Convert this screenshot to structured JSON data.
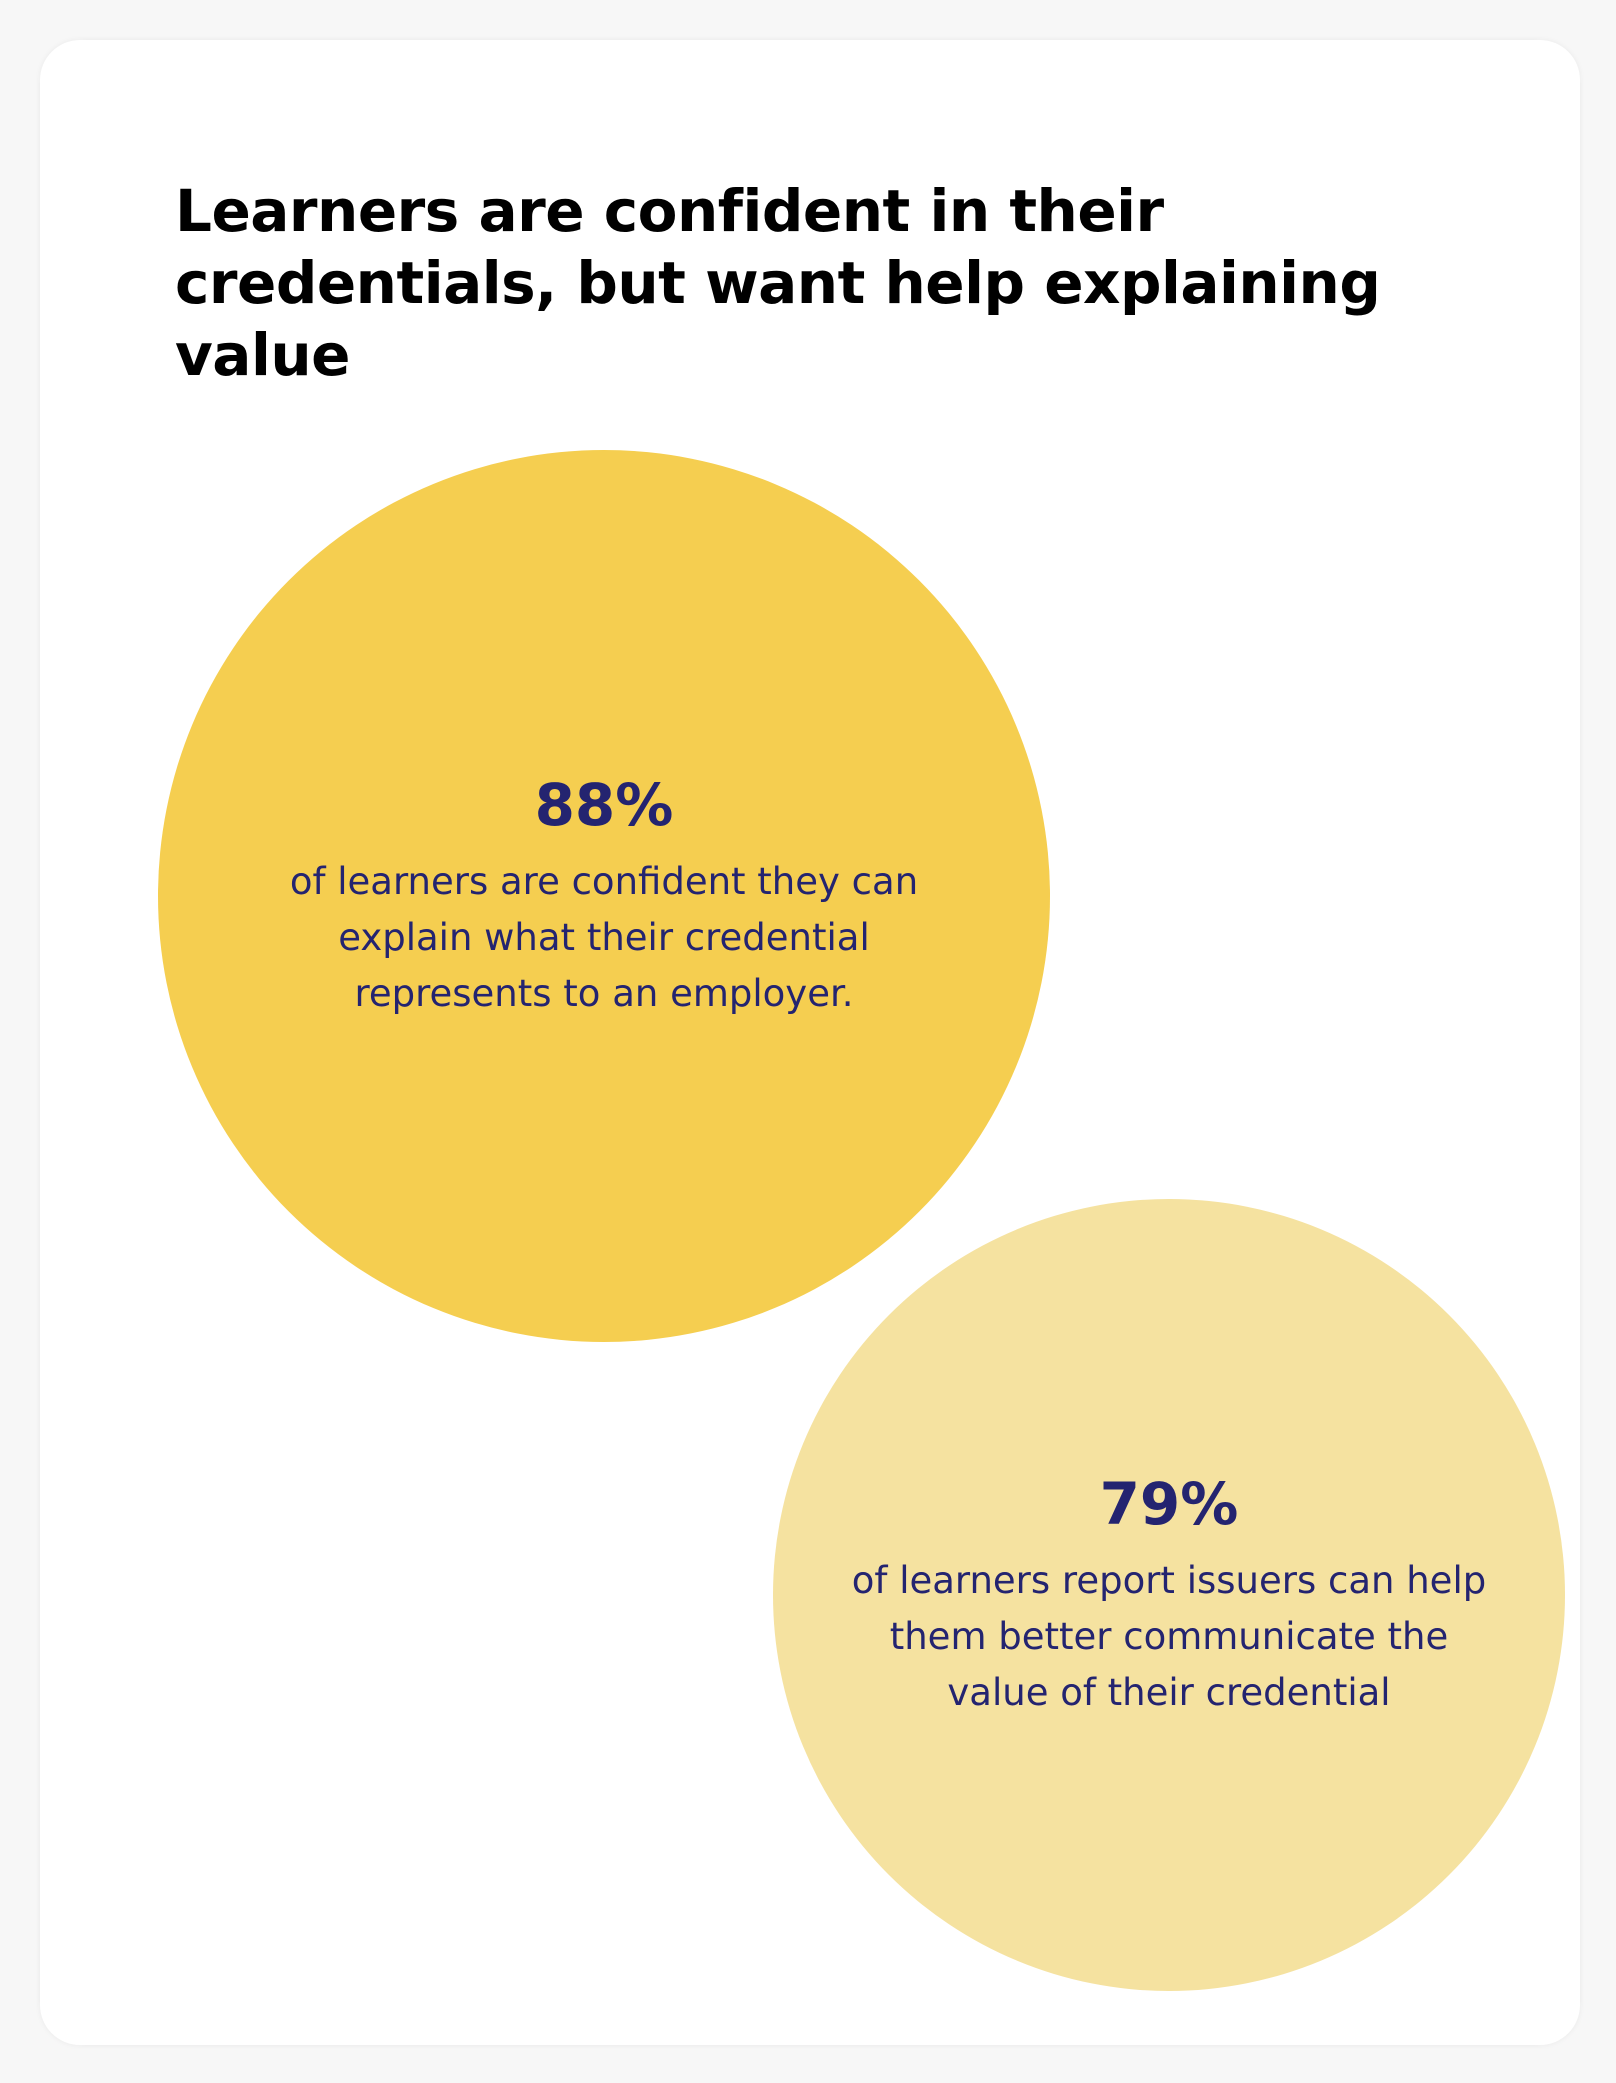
{
  "title": "Learners are confident in their credentials, but want help explaining value",
  "stats": [
    {
      "value": "88%",
      "text": "of learners are confident they can explain what their credential represents to an employer.",
      "color": "#F5CE50"
    },
    {
      "value": "79%",
      "text": "of learners report issuers can help them better communicate the value of their credential",
      "color": "#F5E2A0"
    }
  ],
  "colors": {
    "text_accent": "#242470",
    "card_background": "#FFFFFF",
    "page_background": "#F7F7F7"
  }
}
